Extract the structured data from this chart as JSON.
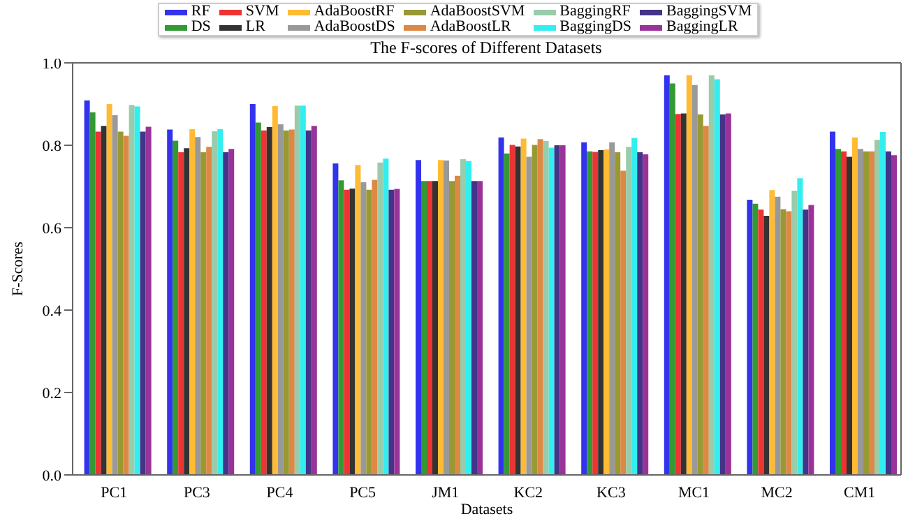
{
  "chart_data": {
    "type": "bar",
    "title": "The F-scores of Different Datasets",
    "xlabel": "Datasets",
    "ylabel": "F-Scores",
    "categories": [
      "PC1",
      "PC3",
      "PC4",
      "PC5",
      "JM1",
      "KC2",
      "KC3",
      "MC1",
      "MC2",
      "CM1"
    ],
    "ylim": [
      0,
      1.0
    ],
    "yticks": [
      {
        "value": 0,
        "label": "0.0"
      },
      0.2,
      0.4,
      0.6,
      0.8,
      {
        "value": 1,
        "label": "1.0"
      }
    ],
    "legend": "top",
    "series": [
      {
        "name": "RF",
        "color": "#3333ee",
        "values": [
          0.909,
          0.838,
          0.9,
          0.756,
          0.764,
          0.819,
          0.807,
          0.97,
          0.668,
          0.833
        ]
      },
      {
        "name": "DS",
        "color": "#339933",
        "values": [
          0.88,
          0.811,
          0.855,
          0.715,
          0.713,
          0.78,
          0.785,
          0.95,
          0.658,
          0.791
        ]
      },
      {
        "name": "SVM",
        "color": "#ee3333",
        "values": [
          0.833,
          0.783,
          0.836,
          0.692,
          0.713,
          0.801,
          0.784,
          0.876,
          0.644,
          0.785
        ]
      },
      {
        "name": "LR",
        "color": "#333333",
        "values": [
          0.847,
          0.793,
          0.844,
          0.695,
          0.713,
          0.797,
          0.788,
          0.877,
          0.629,
          0.772
        ]
      },
      {
        "name": "AdaBoostRF",
        "color": "#ffbb33",
        "values": [
          0.9,
          0.839,
          0.895,
          0.752,
          0.764,
          0.816,
          0.79,
          0.97,
          0.691,
          0.819
        ]
      },
      {
        "name": "AdaBoostDS",
        "color": "#999999",
        "values": [
          0.873,
          0.82,
          0.851,
          0.71,
          0.763,
          0.772,
          0.807,
          0.946,
          0.675,
          0.791
        ]
      },
      {
        "name": "AdaBoostSVM",
        "color": "#999933",
        "values": [
          0.833,
          0.783,
          0.836,
          0.692,
          0.713,
          0.801,
          0.783,
          0.875,
          0.645,
          0.785
        ]
      },
      {
        "name": "AdaBoostLR",
        "color": "#dd8844",
        "values": [
          0.823,
          0.796,
          0.838,
          0.716,
          0.726,
          0.815,
          0.738,
          0.847,
          0.64,
          0.785
        ]
      },
      {
        "name": "BaggingRF",
        "color": "#99ccaa",
        "values": [
          0.898,
          0.834,
          0.896,
          0.758,
          0.766,
          0.81,
          0.796,
          0.97,
          0.69,
          0.813
        ]
      },
      {
        "name": "BaggingDS",
        "color": "#33eeee",
        "values": [
          0.894,
          0.839,
          0.896,
          0.768,
          0.762,
          0.794,
          0.818,
          0.96,
          0.72,
          0.832
        ]
      },
      {
        "name": "BaggingSVM",
        "color": "#443388",
        "values": [
          0.833,
          0.783,
          0.836,
          0.692,
          0.713,
          0.8,
          0.783,
          0.875,
          0.644,
          0.785
        ]
      },
      {
        "name": "BaggingLR",
        "color": "#993399",
        "values": [
          0.845,
          0.791,
          0.847,
          0.694,
          0.713,
          0.8,
          0.778,
          0.877,
          0.655,
          0.776
        ]
      }
    ]
  }
}
